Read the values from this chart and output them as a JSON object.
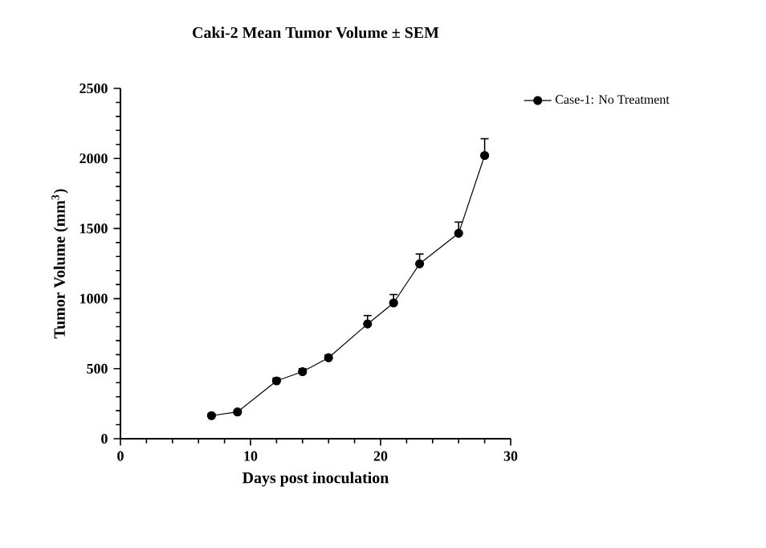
{
  "chart_data": {
    "type": "line",
    "title": "Caki-2 Mean Tumor Volume ± SEM",
    "xlabel": "Days post inoculation",
    "ylabel": "Tumor Volume (mm$^{3}$)",
    "x": [
      7,
      9,
      12,
      14,
      16,
      19,
      21,
      23,
      26,
      28
    ],
    "series": [
      {
        "name": "Case-1: No Treatment",
        "color": "#000000",
        "values": [
          165,
          191,
          413,
          479,
          578,
          819,
          969,
          1248,
          1466,
          2021
        ],
        "errors": [
          10,
          12,
          20,
          20,
          20,
          60,
          60,
          70,
          80,
          120
        ]
      }
    ],
    "xlim": [
      0,
      30
    ],
    "xticks": [
      0,
      10,
      20,
      30
    ],
    "ylim": [
      0,
      2500
    ],
    "yticks": [
      0,
      500,
      1000,
      1500,
      2000,
      2500
    ],
    "legend": "top right",
    "marker": "circle",
    "line_style": "solid",
    "grid": false
  }
}
